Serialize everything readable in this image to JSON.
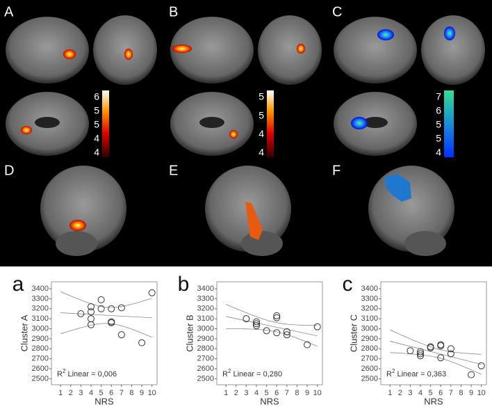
{
  "figure": {
    "panel_labels": [
      "A",
      "B",
      "C",
      "D",
      "E",
      "F"
    ],
    "colorbars": [
      {
        "labels": [
          "6",
          "5",
          "5",
          "4",
          "4"
        ]
      },
      {
        "labels": [
          "5",
          "5",
          "4",
          "4"
        ]
      },
      {
        "labels": [
          "7",
          "6",
          "5",
          "5",
          "4"
        ]
      }
    ]
  },
  "chart_data": [
    {
      "type": "scatter",
      "panel": "a",
      "x_label": "NRS",
      "y_label": "Cluster A",
      "r2": {
        "base": "R",
        "sup": "2",
        "rest": " Linear = 0,006"
      },
      "x": [
        3,
        4,
        4,
        4,
        4,
        5,
        5,
        6,
        6,
        6,
        7,
        7,
        9,
        10
      ],
      "values": [
        3150,
        3220,
        3170,
        3100,
        3040,
        3290,
        3200,
        3200,
        3070,
        3060,
        3210,
        2940,
        2860,
        3360
      ],
      "xlim": [
        0.1,
        10.5
      ],
      "xticks": [
        1,
        2,
        3,
        4,
        5,
        6,
        7,
        8,
        9,
        10
      ],
      "ylim": [
        2440,
        3470
      ],
      "yticks": [
        2500,
        2600,
        2700,
        2800,
        2900,
        3000,
        3100,
        3200,
        3300,
        3400
      ]
    },
    {
      "type": "scatter",
      "panel": "b",
      "x_label": "NRS",
      "y_label": "Cluster B",
      "r2": {
        "base": "R",
        "sup": "2",
        "rest": " Linear = 0,280"
      },
      "x": [
        3,
        4,
        4,
        4,
        5,
        6,
        6,
        6,
        7,
        7,
        9,
        10
      ],
      "values": [
        3100,
        3070,
        3050,
        3030,
        2980,
        3130,
        3110,
        2960,
        2970,
        2940,
        2840,
        3020
      ],
      "xlim": [
        0.1,
        10.5
      ],
      "xticks": [
        1,
        2,
        3,
        4,
        5,
        6,
        7,
        8,
        9,
        10
      ],
      "ylim": [
        2440,
        3470
      ],
      "yticks": [
        2500,
        2600,
        2700,
        2800,
        2900,
        3000,
        3100,
        3200,
        3300,
        3400
      ]
    },
    {
      "type": "scatter",
      "panel": "c",
      "x_label": "NRS",
      "y_label": "Cluster C",
      "r2": {
        "base": "R",
        "sup": "2",
        "rest": " Linear = 0,363"
      },
      "x": [
        3,
        4,
        4,
        4,
        5,
        5,
        6,
        6,
        6,
        7,
        7,
        9,
        10
      ],
      "values": [
        2780,
        2770,
        2750,
        2730,
        2810,
        2820,
        2840,
        2830,
        2710,
        2800,
        2750,
        2540,
        2630
      ],
      "xlim": [
        0.1,
        10.5
      ],
      "xticks": [
        1,
        2,
        3,
        4,
        5,
        6,
        7,
        8,
        9,
        10
      ],
      "ylim": [
        2440,
        3470
      ],
      "yticks": [
        2500,
        2600,
        2700,
        2800,
        2900,
        3000,
        3100,
        3200,
        3300,
        3400
      ]
    }
  ]
}
